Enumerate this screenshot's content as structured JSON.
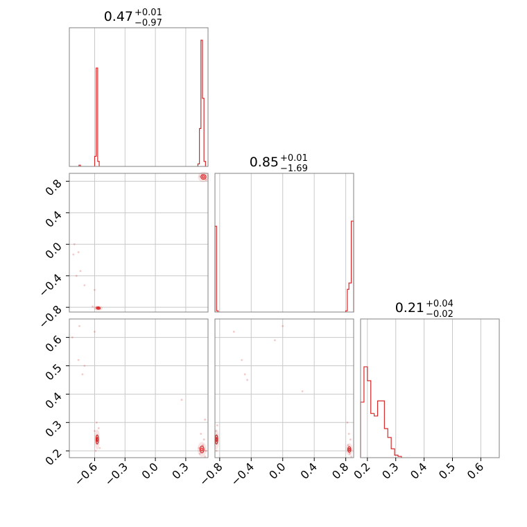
{
  "chart_data": {
    "type": "corner",
    "color": "#d62728",
    "grid": true,
    "parameters": [
      {
        "title": {
          "value": "0.47",
          "upper": "+0.01",
          "lower": "−0.97"
        },
        "range": [
          -0.85,
          0.52
        ],
        "ticks": [
          -0.6,
          -0.3,
          0.0,
          0.3
        ],
        "tick_labels": [
          "−0.6",
          "−0.3",
          "0.0",
          "0.3"
        ]
      },
      {
        "title": {
          "value": "0.85",
          "upper": "+0.01",
          "lower": "−1.69"
        },
        "range": [
          -0.86,
          0.9
        ],
        "ticks": [
          -0.8,
          -0.4,
          0.0,
          0.4,
          0.8
        ],
        "tick_labels": [
          "−0.8",
          "−0.4",
          "0.0",
          "0.4",
          "0.8"
        ]
      },
      {
        "title": {
          "value": "0.21",
          "upper": "+0.04",
          "lower": "−0.02"
        },
        "range": [
          0.176,
          0.665
        ],
        "ticks": [
          0.2,
          0.3,
          0.4,
          0.5,
          0.6
        ],
        "tick_labels": [
          "0.2",
          "0.3",
          "0.4",
          "0.5",
          "0.6"
        ]
      }
    ],
    "histograms": [
      {
        "parameter": 0,
        "bins": [
          [
            -0.755,
            -0.74,
            0.01
          ],
          [
            -0.6,
            -0.585,
            0.08
          ],
          [
            -0.585,
            -0.57,
            0.78
          ],
          [
            -0.57,
            -0.555,
            0.04
          ],
          [
            0.42,
            0.435,
            0.02
          ],
          [
            0.435,
            0.45,
            0.3
          ],
          [
            0.45,
            0.465,
            1.0
          ],
          [
            0.465,
            0.48,
            0.54
          ],
          [
            0.48,
            0.495,
            0.04
          ]
        ]
      },
      {
        "parameter": 1,
        "bins": [
          [
            -0.86,
            -0.84,
            0.68
          ],
          [
            -0.84,
            -0.82,
            0.01
          ],
          [
            0.8,
            0.82,
            0.01
          ],
          [
            0.82,
            0.84,
            0.18
          ],
          [
            0.84,
            0.87,
            0.23
          ],
          [
            0.87,
            0.9,
            0.72
          ]
        ]
      },
      {
        "parameter": 2,
        "bins": [
          [
            0.176,
            0.188,
            0.44
          ],
          [
            0.188,
            0.2,
            0.72
          ],
          [
            0.2,
            0.212,
            0.61
          ],
          [
            0.212,
            0.224,
            0.35
          ],
          [
            0.224,
            0.236,
            0.33
          ],
          [
            0.236,
            0.248,
            0.45
          ],
          [
            0.248,
            0.26,
            0.45
          ],
          [
            0.26,
            0.272,
            0.23
          ],
          [
            0.272,
            0.284,
            0.16
          ],
          [
            0.284,
            0.296,
            0.07
          ],
          [
            0.296,
            0.308,
            0.02
          ],
          [
            0.308,
            0.32,
            0.01
          ]
        ]
      }
    ],
    "panels_2d": [
      {
        "x": 0,
        "y": 1,
        "contours": [
          {
            "cx": 0.475,
            "cy": 0.855,
            "rx": 0.025,
            "ry": 0.03
          },
          {
            "cx": -0.565,
            "cy": -0.81,
            "rx": 0.02,
            "ry": 0.015
          }
        ],
        "points": [
          [
            -0.8,
            0.0
          ],
          [
            -0.76,
            -0.1
          ],
          [
            -0.81,
            -0.13
          ],
          [
            -0.74,
            -0.34
          ],
          [
            -0.78,
            -0.4
          ],
          [
            -0.7,
            -0.52
          ],
          [
            -0.6,
            -0.58
          ],
          [
            0.44,
            0.86
          ],
          [
            0.5,
            0.82
          ],
          [
            -0.62,
            -0.79
          ],
          [
            -0.55,
            -0.82
          ],
          [
            0.46,
            0.88
          ],
          [
            -0.58,
            -0.8
          ]
        ]
      },
      {
        "x": 0,
        "y": 2,
        "contours": [
          {
            "cx": -0.575,
            "cy": 0.24,
            "rx": 0.012,
            "ry": 0.016
          },
          {
            "cx": 0.46,
            "cy": 0.205,
            "rx": 0.02,
            "ry": 0.012
          }
        ],
        "points": [
          [
            -0.75,
            0.64
          ],
          [
            -0.82,
            0.6
          ],
          [
            -0.76,
            0.52
          ],
          [
            -0.7,
            0.5
          ],
          [
            -0.72,
            0.47
          ],
          [
            -0.6,
            0.62
          ],
          [
            0.26,
            0.38
          ],
          [
            0.49,
            0.31
          ],
          [
            -0.58,
            0.3
          ],
          [
            -0.56,
            0.28
          ],
          [
            -0.6,
            0.27
          ],
          [
            -0.55,
            0.21
          ],
          [
            -0.59,
            0.2
          ],
          [
            0.45,
            0.26
          ],
          [
            0.48,
            0.24
          ],
          [
            0.47,
            0.22
          ],
          [
            0.44,
            0.19
          ],
          [
            0.5,
            0.2
          ],
          [
            0.43,
            0.21
          ],
          [
            0.49,
            0.18
          ]
        ]
      },
      {
        "x": 1,
        "y": 2,
        "contours": [
          {
            "cx": -0.84,
            "cy": 0.24,
            "rx": 0.015,
            "ry": 0.016
          },
          {
            "cx": 0.845,
            "cy": 0.205,
            "rx": 0.02,
            "ry": 0.01
          }
        ],
        "points": [
          [
            -0.62,
            0.62
          ],
          [
            -0.52,
            0.52
          ],
          [
            -0.48,
            0.47
          ],
          [
            -0.45,
            0.45
          ],
          [
            0.0,
            0.64
          ],
          [
            0.25,
            0.41
          ],
          [
            -0.1,
            0.59
          ],
          [
            -0.83,
            0.29
          ],
          [
            -0.85,
            0.27
          ],
          [
            -0.84,
            0.2
          ],
          [
            0.82,
            0.3
          ],
          [
            0.84,
            0.26
          ],
          [
            0.86,
            0.24
          ],
          [
            0.83,
            0.22
          ],
          [
            0.85,
            0.19
          ],
          [
            0.87,
            0.18
          ]
        ]
      }
    ]
  }
}
